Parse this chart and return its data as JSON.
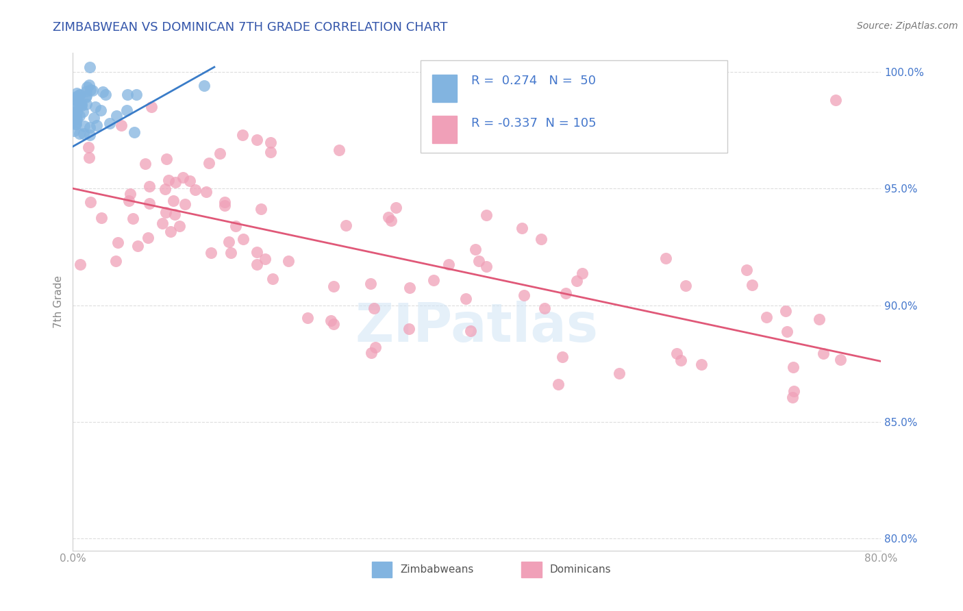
{
  "title": "ZIMBABWEAN VS DOMINICAN 7TH GRADE CORRELATION CHART",
  "source_text": "Source: ZipAtlas.com",
  "ylabel": "7th Grade",
  "xlim": [
    0.0,
    0.8
  ],
  "ylim": [
    0.795,
    1.008
  ],
  "xticks": [
    0.0,
    0.1,
    0.2,
    0.3,
    0.4,
    0.5,
    0.6,
    0.7,
    0.8
  ],
  "xticklabels": [
    "0.0%",
    "",
    "",
    "",
    "",
    "",
    "",
    "",
    "80.0%"
  ],
  "yticks": [
    0.8,
    0.85,
    0.9,
    0.95,
    1.0
  ],
  "yticklabels_right": [
    "80.0%",
    "85.0%",
    "90.0%",
    "95.0%",
    "100.0%"
  ],
  "blue_color": "#82B4E0",
  "pink_color": "#F0A0B8",
  "blue_line_color": "#3A7CC8",
  "pink_line_color": "#E05878",
  "R_blue": 0.274,
  "N_blue": 50,
  "R_pink": -0.337,
  "N_pink": 105,
  "legend_blue_label": "Zimbabweans",
  "legend_pink_label": "Dominicans",
  "title_color": "#3355AA",
  "source_color": "#777777",
  "axis_label_color": "#888888",
  "tick_color": "#999999",
  "grid_color": "#DDDDDD",
  "right_tick_color": "#4477CC",
  "blue_seed": 42,
  "pink_seed": 7,
  "pink_line_x0": 0.0,
  "pink_line_x1": 0.8,
  "pink_line_y0": 0.95,
  "pink_line_y1": 0.876,
  "blue_line_x0": 0.0,
  "blue_line_x1": 0.14,
  "blue_line_y0": 0.968,
  "blue_line_y1": 1.002
}
